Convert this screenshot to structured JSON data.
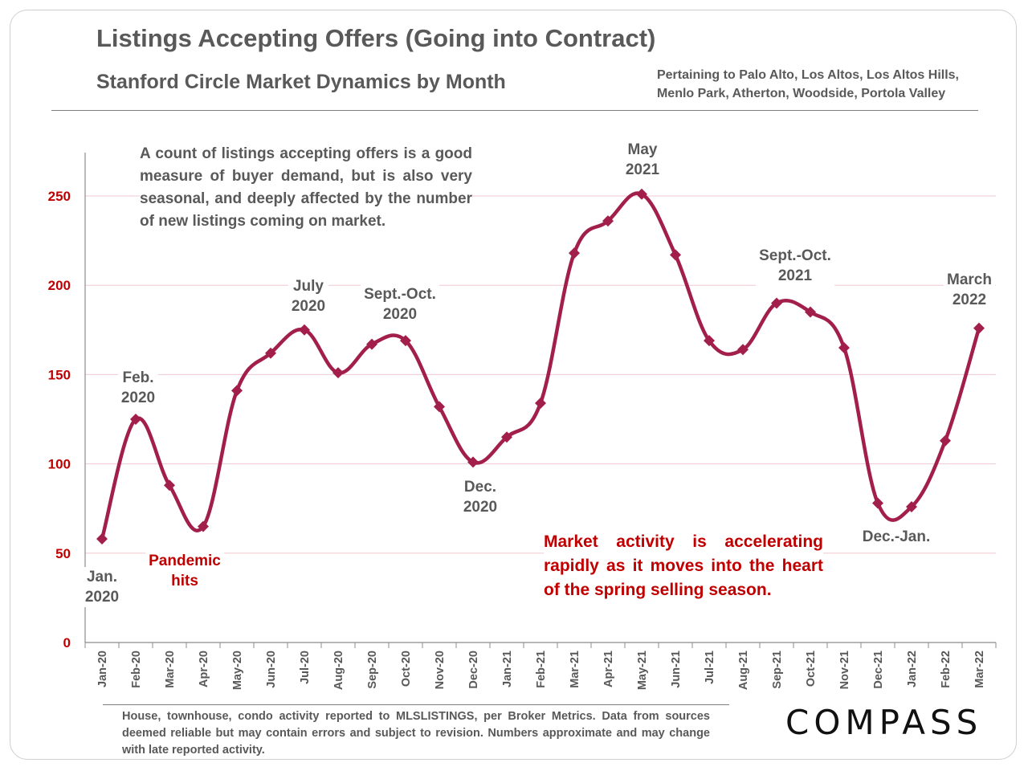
{
  "title": "Listings Accepting Offers (Going into Contract)",
  "subtitle": "Stanford Circle Market Dynamics by Month",
  "region_line1": "Pertaining to Palo Alto, Los Altos, Los Altos Hills,",
  "region_line2": "Menlo Park, Atherton, Woodside, Portola Valley",
  "note": "A count of listings accepting offers is a good measure of buyer demand, but is also very seasonal, and deeply affected by the number of new listings coming on market.",
  "note2": "Market activity is accelerating rapidly as it moves into the heart of the spring selling season.",
  "footnote": "House, townhouse, condo activity reported to MLSLISTINGS, per Broker Metrics. Data from sources deemed reliable but may contain errors and subject to revision. Numbers approximate and may change with late reported activity.",
  "logo": "COMPASS",
  "annotations": [
    {
      "line1": "Jan.",
      "line2": "2020",
      "color": "gray"
    },
    {
      "line1": "Feb.",
      "line2": "2020",
      "color": "gray"
    },
    {
      "line1": "Pandemic",
      "line2": "hits",
      "color": "red"
    },
    {
      "line1": "July",
      "line2": "2020",
      "color": "gray"
    },
    {
      "line1": "Sept.-Oct.",
      "line2": "2020",
      "color": "gray"
    },
    {
      "line1": "Dec.",
      "line2": "2020",
      "color": "gray"
    },
    {
      "line1": "May",
      "line2": "2021",
      "color": "gray"
    },
    {
      "line1": "Sept.-Oct.",
      "line2": "2021",
      "color": "gray"
    },
    {
      "line1": "Dec.-Jan.",
      "line2": "",
      "color": "gray"
    },
    {
      "line1": "March",
      "line2": "2022",
      "color": "gray"
    }
  ],
  "colors": {
    "series": "#a31f4b",
    "axis_labels": "#c00000",
    "text": "#595959",
    "grid": "#f0c8d0"
  },
  "chart_data": {
    "type": "line",
    "smooth": true,
    "marker": "diamond",
    "categories": [
      "Jan-20",
      "Feb-20",
      "Mar-20",
      "Apr-20",
      "May-20",
      "Jun-20",
      "Jul-20",
      "Aug-20",
      "Sep-20",
      "Oct-20",
      "Nov-20",
      "Dec-20",
      "Jan-21",
      "Feb-21",
      "Mar-21",
      "Apr-21",
      "May-21",
      "Jun-21",
      "Jul-21",
      "Aug-21",
      "Sep-21",
      "Oct-21",
      "Nov-21",
      "Dec-21",
      "Jan-22",
      "Feb-22",
      "Mar-22"
    ],
    "values": [
      58,
      125,
      88,
      65,
      141,
      162,
      175,
      151,
      167,
      169,
      132,
      101,
      115,
      134,
      218,
      236,
      251,
      217,
      169,
      164,
      190,
      185,
      165,
      78,
      76,
      113,
      176
    ],
    "yticks": [
      0,
      50,
      100,
      150,
      200,
      250
    ],
    "ylim": [
      0,
      275
    ],
    "grid": true
  }
}
